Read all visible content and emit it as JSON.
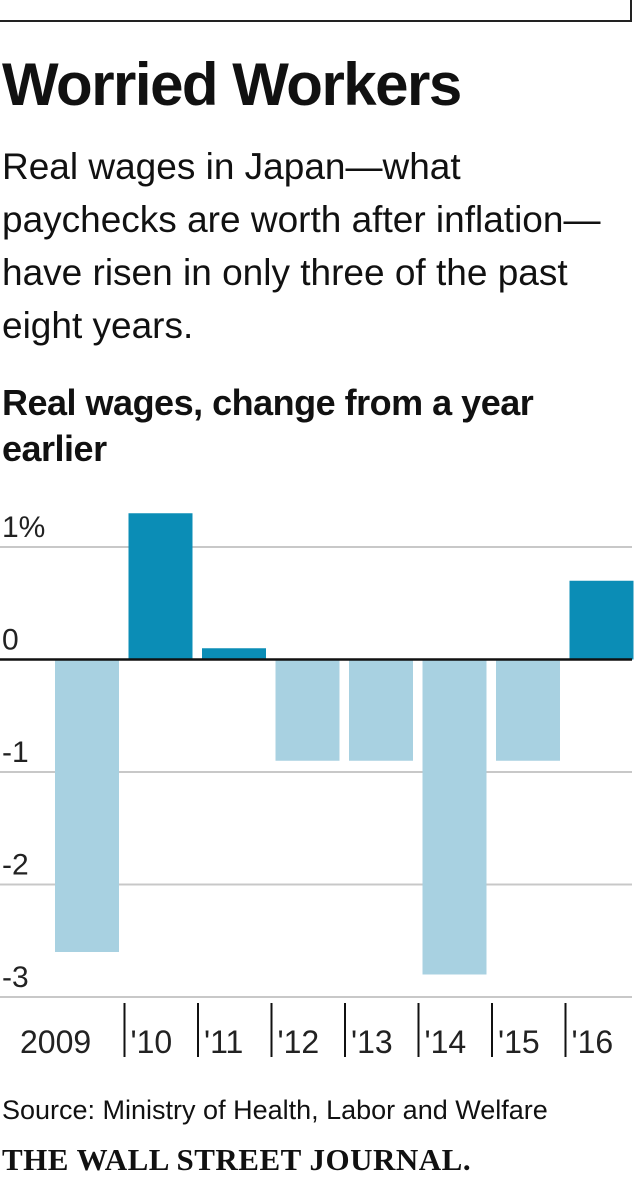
{
  "header": {
    "title": "Worried Workers",
    "subtitle": "Real wages in Japan—what paychecks are worth after inflation—have risen in only three of the past eight years."
  },
  "chart_data": {
    "type": "bar",
    "title": "Real wages, change from a year earlier",
    "categories": [
      "2009",
      "'10",
      "'11",
      "'12",
      "'13",
      "'14",
      "'15",
      "'16"
    ],
    "values": [
      -2.6,
      1.3,
      0.1,
      -0.9,
      -0.9,
      -2.8,
      -0.9,
      0.7
    ],
    "ylim": [
      -3,
      1
    ],
    "ytick_labels": [
      "1%",
      "0",
      "-1",
      "-2",
      "-3"
    ],
    "ytick_values": [
      1,
      0,
      -1,
      -2,
      -3
    ],
    "grid": true,
    "colors": {
      "positive": "#0b8db6",
      "negative": "#a8d1e1",
      "grid": "#c8c8c8",
      "zero": "#111111"
    }
  },
  "footer": {
    "source": "Source: Ministry of Health, Labor and Welfare",
    "publication": "THE WALL STREET JOURNAL."
  }
}
